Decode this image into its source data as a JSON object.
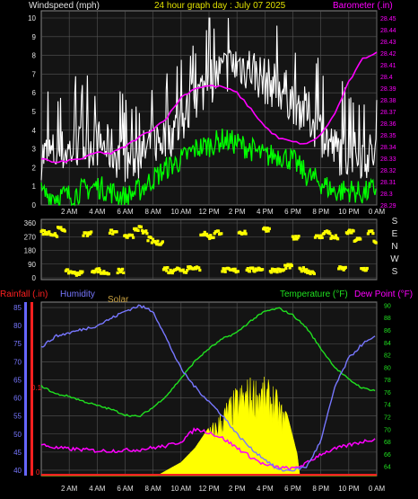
{
  "colors": {
    "background": "#000000",
    "plot_bg": "#141414",
    "grid": "#555555",
    "axis": "#cccccc",
    "title": "#e0e000",
    "wind_gust": "#ffffff",
    "wind_avg": "#00ff00",
    "barometer": "#ff00ff",
    "direction": "#ffff00",
    "rain": "#ff2020",
    "humidity": "#7777ff",
    "solar": "#ffff00",
    "solar_label": "#c8a040",
    "temperature": "#20e020",
    "dewpoint": "#ff00ff"
  },
  "chart_data": [
    {
      "type": "line",
      "id": "wind_pressure",
      "title": "24 hour graph day : July 07 2025",
      "ylabel_left": "Windspeed (mph)",
      "ylabel_right": "Barometer (.in)",
      "x_ticks": [
        "2 AM",
        "4 AM",
        "6 AM",
        "8 AM",
        "10 AM",
        "12 PM",
        "2 PM",
        "4 PM",
        "6 PM",
        "8 PM",
        "10 PM",
        "0 AM"
      ],
      "ylim_left": [
        0,
        10
      ],
      "left_ticks": [
        "0",
        "1",
        "2",
        "3",
        "4",
        "5",
        "6",
        "7",
        "8",
        "9",
        "10"
      ],
      "ylim_right": [
        28.29,
        28.45
      ],
      "right_ticks": [
        "28.29",
        "28.3",
        "28.31",
        "28.32",
        "28.33",
        "28.34",
        "28.35",
        "28.36",
        "28.37",
        "28.38",
        "28.39",
        "28.4",
        "28.41",
        "28.42",
        "28.43",
        "28.44",
        "28.45"
      ],
      "x_range_hours": [
        0,
        24
      ],
      "series": [
        {
          "name": "Windspeed gust",
          "x": [
            0,
            1,
            2,
            3,
            4,
            5,
            6,
            7,
            8,
            9,
            10,
            11,
            12,
            13,
            14,
            15,
            16,
            17,
            18,
            19,
            20,
            21,
            22,
            23,
            24
          ],
          "values": [
            2.5,
            2.6,
            2.8,
            3.0,
            3.2,
            2.8,
            2.2,
            2.4,
            3.2,
            3.5,
            4.2,
            5.5,
            6.5,
            7.0,
            7.4,
            7.2,
            6.5,
            6.2,
            5.5,
            4.8,
            3.8,
            2.8,
            2.6,
            2.5,
            2.6
          ]
        },
        {
          "name": "Windspeed average",
          "x": [
            0,
            1,
            2,
            3,
            4,
            5,
            6,
            7,
            8,
            9,
            10,
            11,
            12,
            13,
            14,
            15,
            16,
            17,
            18,
            19,
            20,
            21,
            22,
            23,
            24
          ],
          "values": [
            0.6,
            0.5,
            0.5,
            0.8,
            1.0,
            0.7,
            0.4,
            0.8,
            1.4,
            2.0,
            2.4,
            3.0,
            3.2,
            3.5,
            3.3,
            3.0,
            2.6,
            2.7,
            2.4,
            1.6,
            1.2,
            0.7,
            0.8,
            0.6,
            0.9
          ]
        },
        {
          "name": "Barometer",
          "x": [
            0,
            1,
            2,
            3,
            4,
            5,
            6,
            7,
            8,
            9,
            10,
            11,
            12,
            13,
            14,
            15,
            16,
            17,
            18,
            19,
            20,
            21,
            22,
            23,
            24
          ],
          "values": [
            28.33,
            28.326,
            28.328,
            28.33,
            28.335,
            28.334,
            28.34,
            28.348,
            28.355,
            28.365,
            28.382,
            28.39,
            28.392,
            28.391,
            28.386,
            28.372,
            28.357,
            28.347,
            28.344,
            28.342,
            28.35,
            28.368,
            28.395,
            28.415,
            28.421
          ]
        }
      ]
    },
    {
      "type": "scatter",
      "id": "wind_direction",
      "ylim": [
        0,
        360
      ],
      "left_ticks": [
        "0",
        "90",
        "180",
        "270",
        "360"
      ],
      "compass_labels": [
        "S",
        "E",
        "N",
        "W",
        "S"
      ],
      "x_range_hours": [
        0,
        24
      ],
      "series": [
        {
          "name": "Wind direction",
          "x": [
            0.4,
            0.9,
            1.4,
            2.0,
            2.6,
            3.3,
            3.9,
            4.5,
            5.2,
            5.6,
            6.3,
            6.9,
            7.4,
            7.8,
            8.0,
            8.3,
            8.6,
            8.9,
            9.3,
            9.6,
            9.9,
            10.3,
            10.7,
            11.2,
            11.6,
            12.1,
            12.6,
            13.2,
            13.8,
            14.4,
            15.0,
            15.6,
            16.1,
            16.6,
            17.1,
            17.7,
            18.2,
            18.7,
            19.3,
            19.9,
            20.4,
            21.0,
            21.5,
            22.1,
            22.6,
            23.1,
            23.6,
            23.9
          ],
          "values": [
            300,
            285,
            320,
            40,
            30,
            290,
            50,
            35,
            300,
            45,
            270,
            325,
            300,
            255,
            240,
            228,
            232,
            60,
            42,
            60,
            55,
            48,
            70,
            60,
            290,
            270,
            300,
            50,
            48,
            300,
            52,
            60,
            320,
            50,
            48,
            75,
            260,
            55,
            40,
            268,
            300,
            265,
            60,
            300,
            250,
            58,
            300,
            240
          ]
        }
      ]
    },
    {
      "type": "line",
      "id": "temp_humidity",
      "legend": [
        "Rainfall (.in)",
        "Humidity",
        "Solar",
        "Temperature (°F)",
        "Dew Point (°F)"
      ],
      "rain_tick": "0.1",
      "rain_zero": "0",
      "x_ticks": [
        "2 AM",
        "4 AM",
        "6 AM",
        "8 AM",
        "10 AM",
        "12 PM",
        "2 PM",
        "4 PM",
        "6 PM",
        "8 PM",
        "10 PM",
        "0 AM"
      ],
      "ylim_humidity": [
        38.5,
        86.5
      ],
      "humidity_ticks": [
        "40",
        "45",
        "50",
        "55",
        "60",
        "65",
        "70",
        "75",
        "80",
        "85"
      ],
      "ylim_temp": [
        62.5,
        90.5
      ],
      "temp_ticks": [
        "64",
        "66",
        "68",
        "70",
        "72",
        "74",
        "76",
        "78",
        "80",
        "82",
        "84",
        "86",
        "88",
        "90"
      ],
      "x_range_hours": [
        0,
        24
      ],
      "series": [
        {
          "name": "Humidity",
          "x": [
            0,
            1,
            2,
            3,
            4,
            5,
            6,
            7,
            8,
            9,
            10,
            11,
            12,
            13,
            14,
            15,
            16,
            17,
            18,
            19,
            20,
            21,
            22,
            23,
            24
          ],
          "values": [
            74,
            77,
            78,
            79,
            80,
            82,
            84,
            85.5,
            84,
            76,
            68,
            63,
            59,
            55,
            50,
            46,
            43,
            40,
            40,
            41,
            48,
            63,
            71,
            75,
            77
          ]
        },
        {
          "name": "Temperature",
          "x": [
            0,
            1,
            2,
            3,
            4,
            5,
            6,
            7,
            8,
            9,
            10,
            11,
            12,
            13,
            14,
            15,
            16,
            17,
            18,
            19,
            20,
            21,
            22,
            23,
            24
          ],
          "values": [
            77,
            75.7,
            75.3,
            74.5,
            73.8,
            73.2,
            72.3,
            72.0,
            73.5,
            75.5,
            78.2,
            81,
            83,
            84.6,
            85.6,
            87.5,
            89,
            89.5,
            88.4,
            86.3,
            83,
            80,
            78,
            76.6,
            76.2
          ]
        },
        {
          "name": "Dew Point",
          "x": [
            0,
            1,
            2,
            3,
            4,
            5,
            6,
            7,
            8,
            9,
            10,
            11,
            12,
            13,
            14,
            15,
            16,
            17,
            18,
            19,
            20,
            21,
            22,
            23,
            24
          ],
          "values": [
            67.5,
            67.0,
            66.8,
            66.7,
            66.5,
            66.5,
            66.6,
            66.7,
            67.0,
            67.3,
            68,
            70,
            69.5,
            68.5,
            67,
            65.5,
            64.2,
            63.8,
            63.6,
            64.5,
            66,
            66.8,
            67.4,
            68,
            68.5
          ]
        },
        {
          "name": "Solar",
          "x": [
            0,
            8.3,
            9,
            10,
            11,
            11.8,
            12.6,
            13.3,
            14,
            14.8,
            15.6,
            16.6,
            17.6,
            18.3,
            18.5,
            24
          ],
          "values": [
            0,
            0,
            5,
            12,
            25,
            40,
            55,
            70,
            82,
            90,
            92,
            85,
            55,
            20,
            0,
            0
          ]
        },
        {
          "name": "Rainfall",
          "x": [
            0,
            24
          ],
          "values": [
            0,
            0
          ]
        }
      ]
    }
  ]
}
